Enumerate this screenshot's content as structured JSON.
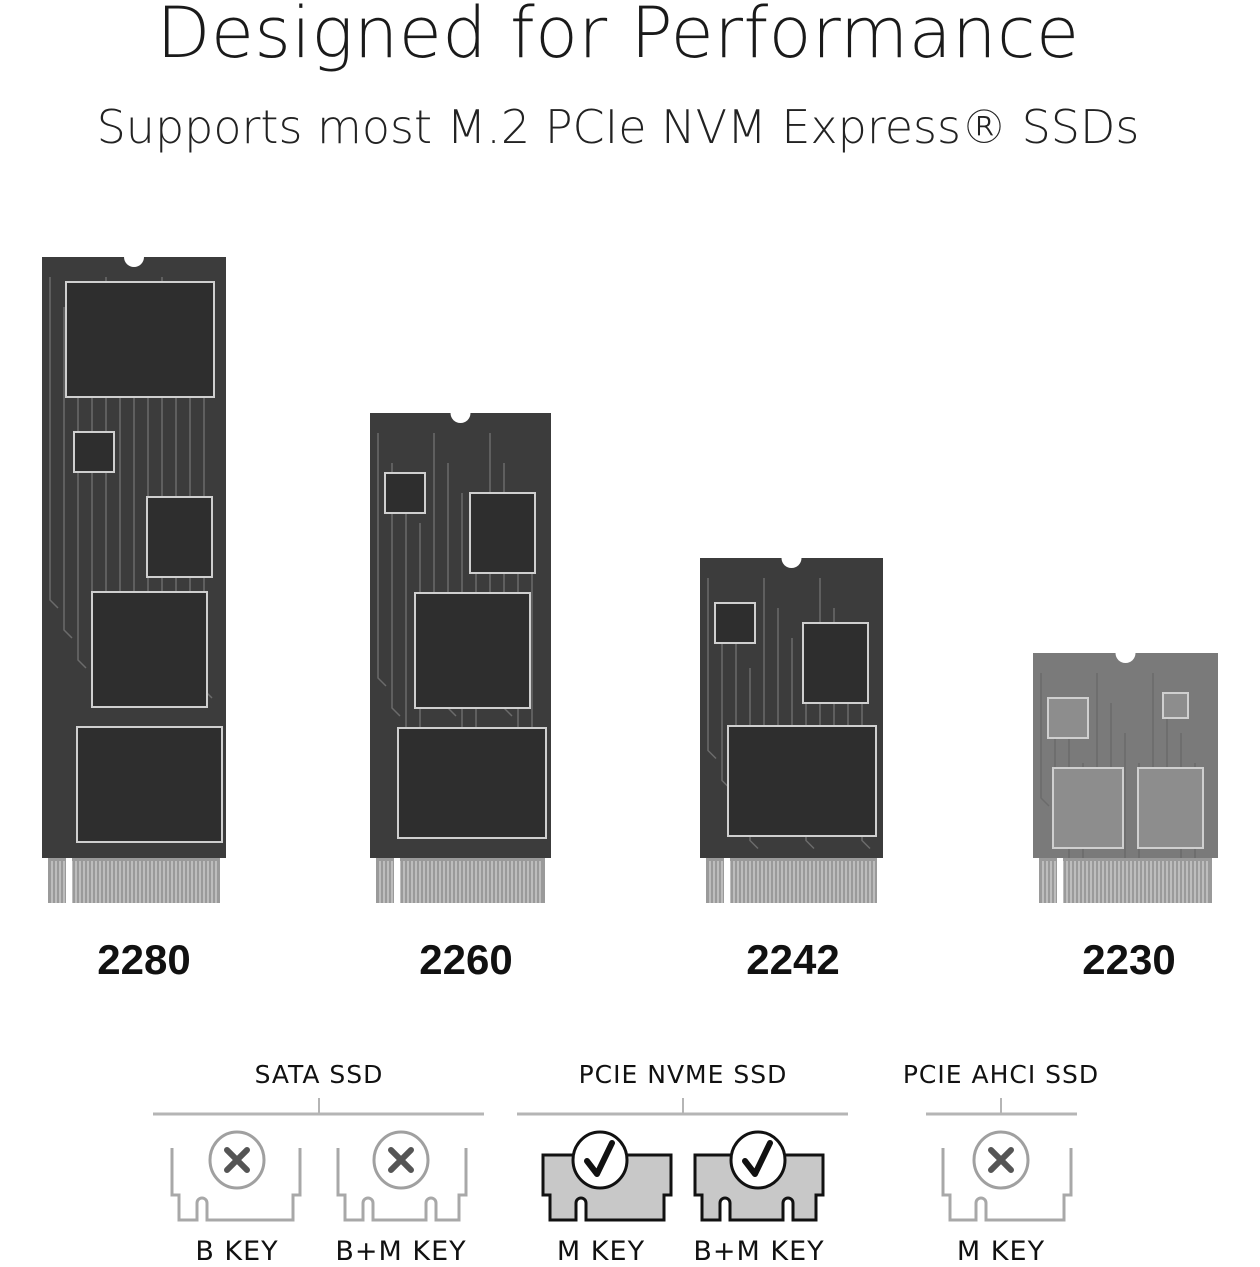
{
  "header": {
    "title": "Designed for Performance",
    "subtitle": "Supports most M.2 PCIe NVM Express® SSDs"
  },
  "ssds": [
    {
      "size": "2280"
    },
    {
      "size": "2260"
    },
    {
      "size": "2242"
    },
    {
      "size": "2230"
    }
  ],
  "compatibility": {
    "groups": [
      {
        "label": "SATA SSD",
        "keys": [
          {
            "label": "B KEY",
            "supported": false,
            "icon": "x-circle-icon"
          },
          {
            "label": "B+M KEY",
            "supported": false,
            "icon": "x-circle-icon"
          }
        ]
      },
      {
        "label": "PCIE NVME SSD",
        "keys": [
          {
            "label": "M KEY",
            "supported": true,
            "icon": "check-circle-icon"
          },
          {
            "label": "B+M KEY",
            "supported": true,
            "icon": "check-circle-icon"
          }
        ]
      },
      {
        "label": "PCIE AHCI SSD",
        "keys": [
          {
            "label": "M KEY",
            "supported": false,
            "icon": "x-circle-icon"
          }
        ]
      }
    ]
  },
  "colors": {
    "board": "#3c3c3c",
    "chip": "#2e2e2e",
    "supported_fill": "#c8c8c8",
    "unsupported_stroke": "#a8a8a8"
  }
}
